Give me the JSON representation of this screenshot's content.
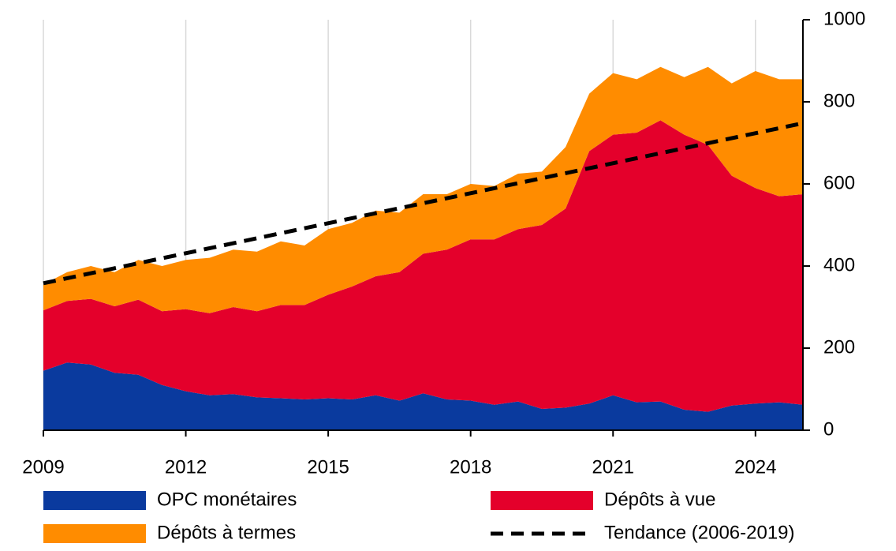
{
  "chart_data": {
    "type": "stacked_area",
    "x": [
      2009,
      2009.5,
      2010,
      2010.5,
      2011,
      2011.5,
      2012,
      2012.5,
      2013,
      2013.5,
      2014,
      2014.5,
      2015,
      2015.5,
      2016,
      2016.5,
      2017,
      2017.5,
      2018,
      2018.5,
      2019,
      2019.5,
      2020,
      2020.5,
      2021,
      2021.5,
      2022,
      2022.5,
      2023,
      2023.5,
      2024,
      2024.5,
      2025
    ],
    "series": [
      {
        "name": "OPC monétaires",
        "color": "#0a3a9e",
        "values": [
          145,
          165,
          160,
          140,
          135,
          110,
          95,
          85,
          88,
          80,
          78,
          75,
          78,
          75,
          85,
          72,
          90,
          75,
          72,
          62,
          70,
          52,
          55,
          65,
          85,
          68,
          70,
          50,
          45,
          60,
          65,
          68,
          62
        ]
      },
      {
        "name": "Dépôts à vue",
        "color": "#e4002b",
        "values": [
          147,
          150,
          160,
          162,
          183,
          180,
          200,
          200,
          212,
          210,
          227,
          230,
          252,
          275,
          290,
          313,
          340,
          365,
          393,
          403,
          420,
          448,
          485,
          615,
          635,
          657,
          685,
          670,
          650,
          560,
          525,
          502,
          513
        ]
      },
      {
        "name": "Dépôts à termes",
        "color": "#ff8c00",
        "values": [
          63,
          70,
          80,
          83,
          97,
          110,
          120,
          135,
          140,
          145,
          155,
          145,
          160,
          155,
          160,
          145,
          145,
          135,
          135,
          130,
          135,
          130,
          150,
          140,
          150,
          130,
          130,
          140,
          190,
          225,
          285,
          285,
          280
        ]
      }
    ],
    "trend": {
      "name": "Tendance (2006-2019)",
      "color": "#000000",
      "x": [
        2009,
        2025
      ],
      "values": [
        358,
        748
      ]
    },
    "xlim": [
      2009,
      2025
    ],
    "xticks": [
      2009,
      2012,
      2015,
      2018,
      2021,
      2024
    ],
    "ylim": [
      0,
      1000
    ],
    "yticks": [
      0,
      200,
      400,
      600,
      800,
      1000
    ],
    "grid": true
  }
}
